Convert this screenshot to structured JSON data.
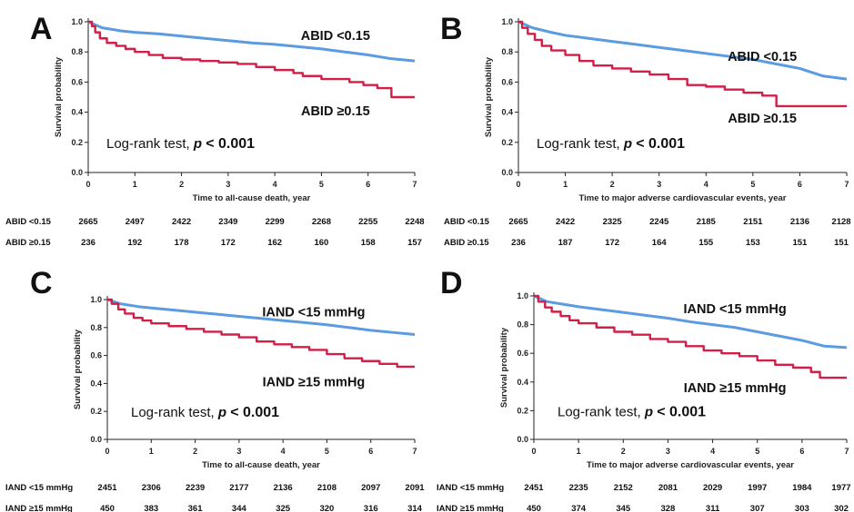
{
  "colors": {
    "low_group": "#5b9be0",
    "high_group": "#d11f48",
    "axis": "#222222"
  },
  "chart_data": [
    {
      "panel": "A",
      "type": "line",
      "xlabel": "Time to all-cause death, year",
      "ylabel": "Survival probability",
      "xlim": [
        0,
        7
      ],
      "ylim": [
        0,
        1
      ],
      "x_ticks": [
        "0",
        "1",
        "2",
        "3",
        "4",
        "5",
        "6",
        "7"
      ],
      "y_ticks": [
        "0.0",
        "0.2",
        "0.4",
        "0.6",
        "0.8",
        "1.0"
      ],
      "annotation_prefix": "Log-rank test,",
      "annotation_p": "p",
      "annotation_value": "< 0.001",
      "series": [
        {
          "name": "ABID <0.15",
          "color": "#5b9be0",
          "points": [
            [
              0,
              1.0
            ],
            [
              0.3,
              0.96
            ],
            [
              0.7,
              0.94
            ],
            [
              1,
              0.93
            ],
            [
              1.5,
              0.92
            ],
            [
              2,
              0.905
            ],
            [
              2.5,
              0.89
            ],
            [
              3,
              0.875
            ],
            [
              3.5,
              0.86
            ],
            [
              4,
              0.85
            ],
            [
              4.5,
              0.835
            ],
            [
              5,
              0.82
            ],
            [
              5.5,
              0.8
            ],
            [
              6,
              0.78
            ],
            [
              6.5,
              0.755
            ],
            [
              7,
              0.74
            ]
          ]
        },
        {
          "name": "ABID ≥0.15",
          "color": "#d11f48",
          "step": true,
          "points": [
            [
              0,
              1.0
            ],
            [
              0.08,
              0.97
            ],
            [
              0.15,
              0.93
            ],
            [
              0.25,
              0.89
            ],
            [
              0.4,
              0.86
            ],
            [
              0.6,
              0.84
            ],
            [
              0.8,
              0.82
            ],
            [
              1.0,
              0.8
            ],
            [
              1.3,
              0.78
            ],
            [
              1.6,
              0.76
            ],
            [
              2.0,
              0.75
            ],
            [
              2.4,
              0.74
            ],
            [
              2.8,
              0.73
            ],
            [
              3.2,
              0.72
            ],
            [
              3.6,
              0.7
            ],
            [
              4.0,
              0.68
            ],
            [
              4.4,
              0.66
            ],
            [
              4.6,
              0.64
            ],
            [
              5.0,
              0.62
            ],
            [
              5.6,
              0.6
            ],
            [
              5.9,
              0.58
            ],
            [
              6.2,
              0.56
            ],
            [
              6.5,
              0.5
            ],
            [
              7,
              0.5
            ]
          ]
        }
      ],
      "labels": [
        {
          "text": "ABID <0.15",
          "x": 5.3,
          "y": 0.88
        },
        {
          "text": "ABID ≥0.15",
          "x": 5.3,
          "y": 0.38
        }
      ],
      "risk_table": [
        {
          "label": "ABID <0.15",
          "values": [
            "2665",
            "2497",
            "2422",
            "2349",
            "2299",
            "2268",
            "2255",
            "2248"
          ]
        },
        {
          "label": "ABID ≥0.15",
          "values": [
            "236",
            "192",
            "178",
            "172",
            "162",
            "160",
            "158",
            "157"
          ]
        }
      ]
    },
    {
      "panel": "B",
      "type": "line",
      "xlabel": "Time to major adverse cardiovascular events, year",
      "ylabel": "Survival probability",
      "xlim": [
        0,
        7
      ],
      "ylim": [
        0,
        1
      ],
      "x_ticks": [
        "0",
        "1",
        "2",
        "3",
        "4",
        "5",
        "6",
        "7"
      ],
      "y_ticks": [
        "0.0",
        "0.2",
        "0.4",
        "0.6",
        "0.8",
        "1.0"
      ],
      "annotation_prefix": "Log-rank test,",
      "annotation_p": "p",
      "annotation_value": "< 0.001",
      "series": [
        {
          "name": "ABID <0.15",
          "color": "#5b9be0",
          "points": [
            [
              0,
              1.0
            ],
            [
              0.3,
              0.96
            ],
            [
              0.7,
              0.93
            ],
            [
              1,
              0.91
            ],
            [
              1.5,
              0.89
            ],
            [
              2,
              0.87
            ],
            [
              2.5,
              0.85
            ],
            [
              3,
              0.83
            ],
            [
              3.5,
              0.81
            ],
            [
              4,
              0.79
            ],
            [
              4.5,
              0.77
            ],
            [
              5,
              0.75
            ],
            [
              5.5,
              0.72
            ],
            [
              6,
              0.69
            ],
            [
              6.5,
              0.64
            ],
            [
              7,
              0.62
            ]
          ]
        },
        {
          "name": "ABID ≥0.15",
          "color": "#d11f48",
          "step": true,
          "points": [
            [
              0,
              1.0
            ],
            [
              0.08,
              0.96
            ],
            [
              0.2,
              0.92
            ],
            [
              0.35,
              0.88
            ],
            [
              0.5,
              0.84
            ],
            [
              0.7,
              0.81
            ],
            [
              1.0,
              0.78
            ],
            [
              1.3,
              0.74
            ],
            [
              1.6,
              0.71
            ],
            [
              2.0,
              0.69
            ],
            [
              2.4,
              0.67
            ],
            [
              2.8,
              0.65
            ],
            [
              3.2,
              0.62
            ],
            [
              3.6,
              0.58
            ],
            [
              4.0,
              0.57
            ],
            [
              4.4,
              0.55
            ],
            [
              4.8,
              0.53
            ],
            [
              5.2,
              0.51
            ],
            [
              5.5,
              0.44
            ],
            [
              7,
              0.44
            ]
          ]
        }
      ],
      "labels": [
        {
          "text": "ABID <0.15",
          "x": 5.2,
          "y": 0.74
        },
        {
          "text": "ABID ≥0.15",
          "x": 5.2,
          "y": 0.33
        }
      ],
      "risk_table": [
        {
          "label": "ABID <0.15",
          "values": [
            "2665",
            "2422",
            "2325",
            "2245",
            "2185",
            "2151",
            "2136",
            "2128"
          ]
        },
        {
          "label": "ABID ≥0.15",
          "values": [
            "236",
            "187",
            "172",
            "164",
            "155",
            "153",
            "151",
            "151"
          ]
        }
      ]
    },
    {
      "panel": "C",
      "type": "line",
      "xlabel": "Time to all-cause death, year",
      "ylabel": "Survival probability",
      "xlim": [
        0,
        7
      ],
      "ylim": [
        0,
        1
      ],
      "x_ticks": [
        "0",
        "1",
        "2",
        "3",
        "4",
        "5",
        "6",
        "7"
      ],
      "y_ticks": [
        "0.0",
        "0.2",
        "0.4",
        "0.6",
        "0.8",
        "1.0"
      ],
      "annotation_prefix": "Log-rank test,",
      "annotation_p": "p",
      "annotation_value": "< 0.001",
      "series": [
        {
          "name": "IAND <15 mmHg",
          "color": "#5b9be0",
          "points": [
            [
              0,
              1.0
            ],
            [
              0.3,
              0.97
            ],
            [
              0.7,
              0.95
            ],
            [
              1,
              0.94
            ],
            [
              1.5,
              0.925
            ],
            [
              2,
              0.91
            ],
            [
              2.5,
              0.895
            ],
            [
              3,
              0.88
            ],
            [
              3.5,
              0.865
            ],
            [
              4,
              0.85
            ],
            [
              4.5,
              0.835
            ],
            [
              5,
              0.82
            ],
            [
              5.5,
              0.8
            ],
            [
              6,
              0.78
            ],
            [
              6.5,
              0.765
            ],
            [
              7,
              0.75
            ]
          ]
        },
        {
          "name": "IAND ≥15 mmHg",
          "color": "#d11f48",
          "step": true,
          "points": [
            [
              0,
              1.0
            ],
            [
              0.1,
              0.97
            ],
            [
              0.25,
              0.93
            ],
            [
              0.4,
              0.9
            ],
            [
              0.6,
              0.87
            ],
            [
              0.8,
              0.85
            ],
            [
              1.0,
              0.83
            ],
            [
              1.4,
              0.81
            ],
            [
              1.8,
              0.79
            ],
            [
              2.2,
              0.77
            ],
            [
              2.6,
              0.75
            ],
            [
              3.0,
              0.73
            ],
            [
              3.4,
              0.7
            ],
            [
              3.8,
              0.68
            ],
            [
              4.2,
              0.66
            ],
            [
              4.6,
              0.64
            ],
            [
              5.0,
              0.61
            ],
            [
              5.4,
              0.58
            ],
            [
              5.8,
              0.56
            ],
            [
              6.2,
              0.54
            ],
            [
              6.6,
              0.52
            ],
            [
              7,
              0.52
            ]
          ]
        }
      ],
      "labels": [
        {
          "text": "IAND <15 mmHg",
          "x": 4.7,
          "y": 0.88
        },
        {
          "text": "IAND ≥15 mmHg",
          "x": 4.7,
          "y": 0.38
        }
      ],
      "risk_table": [
        {
          "label": "IAND <15 mmHg",
          "values": [
            "2451",
            "2306",
            "2239",
            "2177",
            "2136",
            "2108",
            "2097",
            "2091"
          ]
        },
        {
          "label": "IAND ≥15 mmHg",
          "values": [
            "450",
            "383",
            "361",
            "344",
            "325",
            "320",
            "316",
            "314"
          ]
        }
      ]
    },
    {
      "panel": "D",
      "type": "line",
      "xlabel": "Time to major adverse cardiovascular events, year",
      "ylabel": "Survival probability",
      "xlim": [
        0,
        7
      ],
      "ylim": [
        0,
        1
      ],
      "x_ticks": [
        "0",
        "1",
        "2",
        "3",
        "4",
        "5",
        "6",
        "7"
      ],
      "y_ticks": [
        "0.0",
        "0.2",
        "0.4",
        "0.6",
        "0.8",
        "1.0"
      ],
      "annotation_prefix": "Log-rank test,",
      "annotation_p": "p",
      "annotation_value": "< 0.001",
      "series": [
        {
          "name": "IAND <15 mmHg",
          "color": "#5b9be0",
          "points": [
            [
              0,
              1.0
            ],
            [
              0.3,
              0.96
            ],
            [
              0.7,
              0.94
            ],
            [
              1,
              0.925
            ],
            [
              1.5,
              0.905
            ],
            [
              2,
              0.885
            ],
            [
              2.5,
              0.865
            ],
            [
              3,
              0.845
            ],
            [
              3.5,
              0.82
            ],
            [
              4,
              0.8
            ],
            [
              4.5,
              0.78
            ],
            [
              5,
              0.75
            ],
            [
              5.5,
              0.72
            ],
            [
              6,
              0.69
            ],
            [
              6.5,
              0.65
            ],
            [
              7,
              0.64
            ]
          ]
        },
        {
          "name": "IAND ≥15 mmHg",
          "color": "#d11f48",
          "step": true,
          "points": [
            [
              0,
              1.0
            ],
            [
              0.1,
              0.96
            ],
            [
              0.25,
              0.92
            ],
            [
              0.4,
              0.89
            ],
            [
              0.6,
              0.86
            ],
            [
              0.8,
              0.83
            ],
            [
              1.0,
              0.81
            ],
            [
              1.4,
              0.78
            ],
            [
              1.8,
              0.75
            ],
            [
              2.2,
              0.73
            ],
            [
              2.6,
              0.7
            ],
            [
              3.0,
              0.68
            ],
            [
              3.4,
              0.65
            ],
            [
              3.8,
              0.62
            ],
            [
              4.2,
              0.6
            ],
            [
              4.6,
              0.58
            ],
            [
              5.0,
              0.55
            ],
            [
              5.4,
              0.52
            ],
            [
              5.8,
              0.5
            ],
            [
              6.2,
              0.47
            ],
            [
              6.4,
              0.43
            ],
            [
              7,
              0.43
            ]
          ]
        }
      ],
      "labels": [
        {
          "text": "IAND <15 mmHg",
          "x": 4.5,
          "y": 0.88
        },
        {
          "text": "IAND ≥15 mmHg",
          "x": 4.5,
          "y": 0.33
        }
      ],
      "risk_table": [
        {
          "label": "IAND <15 mmHg",
          "values": [
            "2451",
            "2235",
            "2152",
            "2081",
            "2029",
            "1997",
            "1984",
            "1977"
          ]
        },
        {
          "label": "IAND ≥15 mmHg",
          "values": [
            "450",
            "374",
            "345",
            "328",
            "311",
            "307",
            "303",
            "302"
          ]
        }
      ]
    }
  ]
}
